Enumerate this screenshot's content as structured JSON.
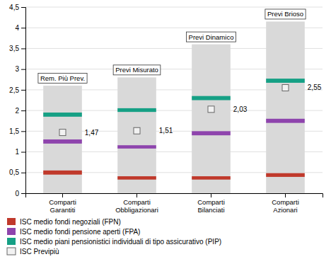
{
  "chart_data": {
    "type": "bar",
    "categories": [
      "Comparti Garantiti",
      "Comparti Obbligazionari",
      "Comparti Bilanciati",
      "Comparti Azionari"
    ],
    "annotations": [
      "Rem. Più Prev.",
      "Previ Misurato",
      "Previ Dinamico",
      "Previ Brioso"
    ],
    "series": [
      {
        "type": "bar",
        "color": "#d9d9d9",
        "values": [
          2.6,
          2.8,
          3.6,
          4.15
        ]
      },
      {
        "name": "ISC medio fondi negoziali (FPN)",
        "type": "stripe",
        "color": "#c0392b",
        "values": [
          0.5,
          0.37,
          0.37,
          0.44
        ],
        "heights": [
          0.1,
          0.08,
          0.08,
          0.09
        ]
      },
      {
        "name": "ISC medio fondi pensione aperti (FPA)",
        "type": "stripe",
        "color": "#8e44ad",
        "values": [
          1.25,
          1.12,
          1.45,
          1.75
        ],
        "heights": [
          0.1,
          0.08,
          0.1,
          0.1
        ]
      },
      {
        "name": "ISC medio piani pensionistici individuali di tipo assicurativo (PIP)",
        "type": "stripe",
        "color": "#16a085",
        "values": [
          1.9,
          2.01,
          2.3,
          2.72
        ],
        "heights": [
          0.1,
          0.09,
          0.1,
          0.1
        ]
      },
      {
        "name": "ISC Previpiù",
        "type": "scatter",
        "marker": "square",
        "color": "#f2f2f2",
        "values": [
          1.47,
          1.51,
          2.03,
          2.55
        ],
        "data_labels": true,
        "value_labels": [
          "1,47",
          "1,51",
          "2,03",
          "2,55"
        ]
      }
    ],
    "ylim": [
      0,
      4.5
    ],
    "yticks": [
      0,
      {
        "value": 0.5,
        "label": "0,5"
      },
      1,
      {
        "value": 1.5,
        "label": "1,5"
      },
      2,
      {
        "value": 2.5,
        "label": "2,5"
      },
      3,
      {
        "value": 3.5,
        "label": "3,5"
      },
      4,
      {
        "value": 4.5,
        "label": "4,5"
      }
    ],
    "grid": true,
    "legend": "bottom"
  }
}
